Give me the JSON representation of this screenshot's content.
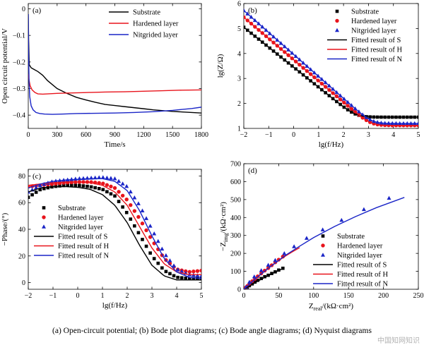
{
  "colors": {
    "substrate": "#000000",
    "hardened": "#e8141c",
    "nitrided": "#1a25c7"
  },
  "caption": "(a) Open-circuit potential; (b) Bode plot diagrams; (c) Bode angle diagrams; (d) Nyquist diagrams",
  "watermark": "中国知网知识",
  "chart_data": [
    {
      "id": "a",
      "type": "line",
      "panel_label": "(a)",
      "xlabel": "Time/s",
      "ylabel": "Open circuit potential/V",
      "xlim": [
        0,
        1800
      ],
      "ylim": [
        -0.45,
        0.02
      ],
      "xticks": [
        0,
        300,
        600,
        900,
        1200,
        1500,
        1800
      ],
      "yticks": [
        0.0,
        -0.1,
        -0.2,
        -0.3,
        -0.4
      ],
      "ytick_labels": [
        "0",
        "−0.1",
        "−0.2",
        "−0.3",
        "−0.4"
      ],
      "legend_position": "top-right",
      "series": [
        {
          "name": "Substrate",
          "key": "substrate",
          "x": [
            0,
            4,
            10,
            30,
            60,
            100,
            150,
            200,
            300,
            400,
            500,
            600,
            700,
            800,
            900,
            1000,
            1100,
            1200,
            1300,
            1400,
            1500,
            1600,
            1700,
            1800
          ],
          "y": [
            -0.02,
            -0.12,
            -0.21,
            -0.222,
            -0.228,
            -0.236,
            -0.25,
            -0.27,
            -0.3,
            -0.318,
            -0.333,
            -0.343,
            -0.352,
            -0.36,
            -0.364,
            -0.368,
            -0.372,
            -0.376,
            -0.38,
            -0.383,
            -0.386,
            -0.388,
            -0.39,
            -0.392
          ]
        },
        {
          "name": "Hardened layer",
          "key": "hardened",
          "x": [
            0,
            8,
            20,
            40,
            70,
            100,
            150,
            200,
            300,
            400,
            600,
            800,
            1000,
            1200,
            1400,
            1600,
            1800
          ],
          "y": [
            -0.245,
            -0.268,
            -0.29,
            -0.305,
            -0.315,
            -0.32,
            -0.321,
            -0.32,
            -0.318,
            -0.317,
            -0.315,
            -0.313,
            -0.312,
            -0.31,
            -0.308,
            -0.306,
            -0.305
          ]
        },
        {
          "name": "Nitgrided layer",
          "key": "nitrided",
          "x": [
            0,
            3,
            8,
            15,
            30,
            50,
            80,
            120,
            170,
            250,
            350,
            500,
            700,
            900,
            1100,
            1300,
            1500,
            1700,
            1800
          ],
          "y": [
            -0.02,
            -0.15,
            -0.27,
            -0.33,
            -0.365,
            -0.38,
            -0.39,
            -0.394,
            -0.396,
            -0.397,
            -0.396,
            -0.394,
            -0.393,
            -0.392,
            -0.39,
            -0.387,
            -0.382,
            -0.375,
            -0.37
          ]
        }
      ]
    },
    {
      "id": "b",
      "type": "scatter",
      "panel_label": "(b)",
      "xlabel": "lg(f/Hz)",
      "ylabel": "lg(Z/Ω)",
      "xlim": [
        -2,
        5
      ],
      "ylim": [
        1,
        6
      ],
      "xticks": [
        -2,
        -1,
        0,
        1,
        2,
        3,
        4,
        5
      ],
      "yticks": [
        1,
        2,
        3,
        4,
        5,
        6
      ],
      "legend_position": "top-right",
      "series": [
        {
          "name": "Substrate",
          "key": "substrate",
          "marker": "square",
          "points": {
            "model": "bode",
            "y0": 5.05,
            "slope": -0.8,
            "plateau": 1.45,
            "from": -2,
            "to": 5,
            "n": 48
          }
        },
        {
          "name": "Hardened layer",
          "key": "hardened",
          "marker": "circle",
          "points": {
            "model": "bode",
            "y0": 5.45,
            "slope": -0.85,
            "plateau": 1.12,
            "from": -2,
            "to": 5,
            "n": 48
          }
        },
        {
          "name": "Nitgrided layer",
          "key": "nitrided",
          "marker": "triangle",
          "points": {
            "model": "bode",
            "y0": 5.72,
            "slope": -0.88,
            "plateau": 1.2,
            "from": -2,
            "to": 5,
            "n": 48
          }
        },
        {
          "name": "Fitted result of S",
          "key": "substrate",
          "marker": "line",
          "points": {
            "model": "bode",
            "y0": 5.05,
            "slope": -0.8,
            "plateau": 1.45,
            "from": -2,
            "to": 5,
            "n": 120
          }
        },
        {
          "name": "Fitted result of H",
          "key": "hardened",
          "marker": "line",
          "points": {
            "model": "bode",
            "y0": 5.45,
            "slope": -0.85,
            "plateau": 1.12,
            "from": -2,
            "to": 5,
            "n": 120
          }
        },
        {
          "name": "Fitted result of N",
          "key": "nitrided",
          "marker": "line",
          "points": {
            "model": "bode",
            "y0": 5.72,
            "slope": -0.88,
            "plateau": 1.2,
            "from": -2,
            "to": 5,
            "n": 120
          }
        }
      ]
    },
    {
      "id": "c",
      "type": "scatter",
      "panel_label": "(c)",
      "xlabel": "lg(f/Hz)",
      "ylabel": "−Phase/(°)",
      "xlim": [
        -2,
        5
      ],
      "ylim": [
        -5,
        85
      ],
      "xticks": [
        -2,
        -1,
        0,
        1,
        2,
        3,
        4,
        5
      ],
      "yticks": [
        0,
        20,
        40,
        60,
        80
      ],
      "legend_position": "bottom-left",
      "series": [
        {
          "name": "Substrate",
          "key": "substrate",
          "marker": "square",
          "points": {
            "model": "phase",
            "x": [
              -2,
              -1.5,
              -1,
              -0.5,
              0,
              0.5,
              1,
              1.5,
              2,
              2.5,
              3,
              3.5,
              4,
              4.5,
              5
            ],
            "y": [
              64,
              70,
              72,
              73,
              73,
              72,
              70,
              65,
              52,
              36,
              20,
              9,
              4,
              3,
              3
            ],
            "n": 45
          }
        },
        {
          "name": "Hardened layer",
          "key": "hardened",
          "marker": "circle",
          "points": {
            "model": "phase",
            "x": [
              -2,
              -1.5,
              -1,
              -0.5,
              0,
              0.5,
              1,
              1.5,
              2,
              2.5,
              3,
              3.5,
              4,
              4.5,
              5
            ],
            "y": [
              72,
              73,
              74,
              75,
              75.5,
              75.5,
              74.5,
              71,
              62,
              48,
              32,
              18,
              10,
              8,
              9
            ],
            "n": 45
          }
        },
        {
          "name": "Nitgrided layer",
          "key": "nitrided",
          "marker": "triangle",
          "points": {
            "model": "phase",
            "x": [
              -2,
              -1.5,
              -1,
              -0.5,
              0,
              0.5,
              1,
              1.5,
              2,
              2.5,
              3,
              3.5,
              4,
              4.5,
              5
            ],
            "y": [
              68,
              73,
              76,
              77,
              78,
              78.5,
              79,
              78,
              72,
              58,
              40,
              22,
              10,
              6,
              5
            ],
            "n": 45
          }
        },
        {
          "name": "Fitted result of S",
          "key": "substrate",
          "marker": "line",
          "points": {
            "model": "phase",
            "x": [
              -2,
              -1.5,
              -1,
              -0.5,
              0,
              0.5,
              1,
              1.5,
              2,
              2.5,
              3,
              3.5,
              4,
              4.5,
              5
            ],
            "y": [
              68,
              71,
              72,
              72,
              71.5,
              70,
              66,
              58,
              45,
              28,
              13,
              5,
              2,
              2,
              2
            ],
            "n": 120
          }
        },
        {
          "name": "Fitted result of H",
          "key": "hardened",
          "marker": "line",
          "points": {
            "model": "phase",
            "x": [
              -2,
              -1.5,
              -1,
              -0.5,
              0,
              0.5,
              1,
              1.5,
              2,
              2.5,
              3,
              3.5,
              4,
              4.5,
              5
            ],
            "y": [
              73,
              74,
              75,
              75.5,
              75.5,
              75,
              73,
              68,
              58,
              42,
              26,
              14,
              8,
              6,
              6
            ],
            "n": 120
          }
        },
        {
          "name": "Fitted result of N",
          "key": "nitrided",
          "marker": "line",
          "points": {
            "model": "phase",
            "x": [
              -2,
              -1.5,
              -1,
              -0.5,
              0,
              0.5,
              1,
              1.5,
              2,
              2.5,
              3,
              3.5,
              4,
              4.5,
              5
            ],
            "y": [
              71,
              74,
              76,
              77,
              77.5,
              78,
              78,
              76,
              69,
              54,
              35,
              18,
              8,
              4,
              3
            ],
            "n": 120
          }
        }
      ]
    },
    {
      "id": "d",
      "type": "scatter",
      "panel_label": "(d)",
      "xlabel_main": "Z",
      "xlabel_sub": "real",
      "xlabel_unit": "/(kΩ·cm²)",
      "ylabel_main": "−Z",
      "ylabel_sub": "img",
      "ylabel_unit": "/(kΩ·cm²)",
      "xlim": [
        0,
        250
      ],
      "ylim": [
        0,
        700
      ],
      "xticks": [
        0,
        50,
        100,
        150,
        200,
        250
      ],
      "yticks": [
        0,
        100,
        200,
        300,
        400,
        500,
        600,
        700
      ],
      "legend_position": "bottom-right",
      "series": [
        {
          "name": "Substrate",
          "key": "substrate",
          "marker": "square",
          "x": [
            2,
            5,
            8,
            12,
            16,
            20,
            25,
            30,
            35,
            40,
            45,
            50,
            56
          ],
          "y": [
            5,
            12,
            20,
            30,
            40,
            50,
            60,
            70,
            78,
            88,
            97,
            107,
            117
          ]
        },
        {
          "name": "Hardened layer",
          "key": "hardened",
          "marker": "circle",
          "x": [
            2,
            5,
            8,
            12,
            16,
            20,
            25,
            30,
            35,
            40,
            45,
            50,
            56
          ],
          "y": [
            8,
            18,
            30,
            45,
            58,
            72,
            88,
            104,
            118,
            134,
            150,
            165,
            182
          ]
        },
        {
          "name": "Nitgrided layer",
          "key": "nitrided",
          "marker": "triangle",
          "x": [
            3,
            8,
            15,
            25,
            35,
            45,
            58,
            72,
            90,
            113,
            140,
            172,
            208
          ],
          "y": [
            12,
            40,
            70,
            105,
            135,
            162,
            200,
            238,
            285,
            332,
            385,
            445,
            508
          ]
        },
        {
          "name": "Fitted result of S",
          "key": "substrate",
          "marker": "line",
          "x": [
            0,
            10,
            20,
            30,
            40,
            50,
            56
          ],
          "y": [
            0,
            22,
            45,
            66,
            86,
            104,
            115
          ]
        },
        {
          "name": "Fitted result of H",
          "key": "hardened",
          "marker": "line",
          "x": [
            0,
            10,
            20,
            30,
            40,
            50,
            60,
            70,
            80
          ],
          "y": [
            0,
            36,
            70,
            102,
            132,
            160,
            186,
            210,
            232
          ]
        },
        {
          "name": "Fitted result of N",
          "key": "nitrided",
          "marker": "line",
          "x": [
            0,
            20,
            40,
            60,
            80,
            100,
            130,
            160,
            190,
            230
          ],
          "y": [
            0,
            70,
            132,
            190,
            240,
            288,
            350,
            405,
            455,
            512
          ]
        }
      ]
    }
  ]
}
